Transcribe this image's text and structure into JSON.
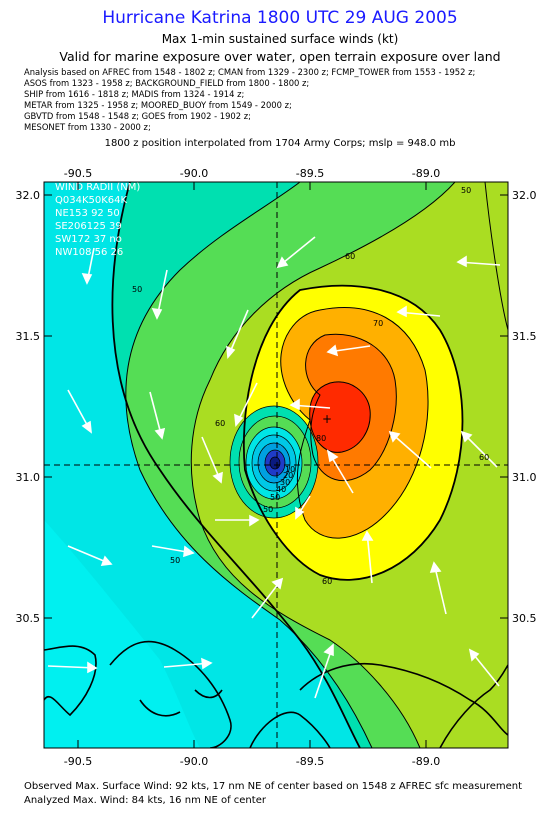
{
  "header": {
    "title": "Hurricane Katrina 1800 UTC 29 AUG 2005",
    "subtitle": "Max 1-min sustained surface winds (kt)",
    "valid": "Valid for marine exposure over water, open terrain exposure over land"
  },
  "sources": [
    "Analysis based on  AFREC from 1548 - 1802 z;  CMAN from 1329 - 2300 z;  FCMP_TOWER from 1553 - 1952 z;",
    "ASOS from 1323 - 1958 z;  BACKGROUND_FIELD from 1800 - 1800 z;",
    "SHIP from 1616 - 1818 z;  MADIS from 1324 - 1914 z;",
    "METAR from 1325 - 1958 z;  MOORED_BUOY from 1549 - 2000 z;",
    "GBVTD from 1548 - 1548 z;  GOES from 1902 - 1902 z;",
    "MESONET from 1330 - 2000 z;"
  ],
  "position_note": "1800 z position interpolated from 1704 Army Corps; mslp = 948.0 mb",
  "axes": {
    "lon_ticks": [
      "-90.5",
      "-90.0",
      "-89.5",
      "-89.0"
    ],
    "lat_ticks": [
      "32.0",
      "31.5",
      "31.0",
      "30.5"
    ]
  },
  "wind_radii": {
    "header": "WIND RADII (NM)",
    "rows": [
      "Q034K50K64K",
      "NE153 92 50",
      "SE206125 39",
      "SW172 37 no",
      "NW108 56 26"
    ]
  },
  "contour_labels": [
    "50",
    "60",
    "70",
    "80",
    "50",
    "60",
    "50",
    "50",
    "60",
    "60",
    "50",
    "40",
    "30",
    "20",
    "10"
  ],
  "footer": {
    "observed": "Observed Max. Surface Wind: 92 kts, 17 nm NE of center based on 1548 z AFREC sfc measurement",
    "analyzed": "Analyzed Max. Wind: 84 kts, 16 nm NE of center"
  },
  "colors": {
    "title": "#1a1aff",
    "wind_30_40": "#00e6e6",
    "wind_40_50": "#00e0b0",
    "wind_50_60": "#55dd55",
    "wind_60_70": "#aadd22",
    "wind_70_80": "#ffff00",
    "wind_80_90": "#ffb000",
    "wind_90_100": "#ff7a00",
    "wind_max": "#ff2a00",
    "eye": "#1f3cc8"
  }
}
